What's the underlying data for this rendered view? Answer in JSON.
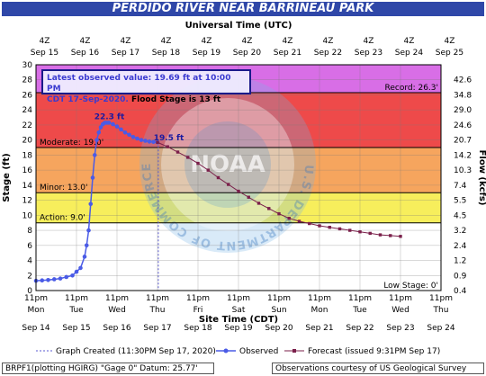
{
  "title": "PERDIDO RIVER NEAR BARRINEAU PARK",
  "top_axis_title": "Universal Time (UTC)",
  "bottom_axis_title": "Site Time (CDT)",
  "info_box": {
    "line1": "Latest observed value: 19.69 ft at 10:00 PM",
    "line2a": "CDT 17-Sep-2020.",
    "line2b": " Flood Stage is 13 ft"
  },
  "legend": {
    "graph_created": "Graph Created (11:30PM Sep 17, 2020)",
    "observed": "Observed",
    "forecast": "Forecast (issued 9:31PM Sep 17)"
  },
  "footer": {
    "left": "BRPF1(plotting HGIRG) \"Gage 0\" Datum: 25.77'",
    "right": "Observations courtesy of US Geological Survey"
  },
  "watermark": {
    "emblem": "NOAA",
    "text": "U.S. DEPARTMENT OF COMMERCE · NATIONAL OCEANIC AND ATMOSPHERIC ADMINISTRATION"
  },
  "colors": {
    "record_band": "#d86ee6",
    "major_band": "#ee4a4a",
    "moderate_band": "#f6a55e",
    "minor_band": "#f7ee5c",
    "observed": "#4a5be6",
    "forecast": "#7a1f4a",
    "title_bg": "#2f47a8"
  },
  "chart_data": {
    "type": "line",
    "title": "PERDIDO RIVER NEAR BARRINEAU PARK",
    "ylabel": "Stage (ft)",
    "y2label": "Flow (kcfs)",
    "xlabel": "Site Time (CDT)",
    "ylim": [
      0,
      30
    ],
    "yticks": [
      0,
      2,
      4,
      6,
      8,
      10,
      12,
      14,
      16,
      18,
      20,
      22,
      24,
      26,
      28,
      30
    ],
    "xlim_days": [
      "2020-09-14 23:00",
      "2020-09-24 23:00"
    ],
    "top_ticks": [
      {
        "t": "4Z",
        "d": "Sep 15"
      },
      {
        "t": "4Z",
        "d": "Sep 16"
      },
      {
        "t": "4Z",
        "d": "Sep 17"
      },
      {
        "t": "4Z",
        "d": "Sep 18"
      },
      {
        "t": "4Z",
        "d": "Sep 19"
      },
      {
        "t": "4Z",
        "d": "Sep 20"
      },
      {
        "t": "4Z",
        "d": "Sep 21"
      },
      {
        "t": "4Z",
        "d": "Sep 22"
      },
      {
        "t": "4Z",
        "d": "Sep 23"
      },
      {
        "t": "4Z",
        "d": "Sep 24"
      },
      {
        "t": "4Z",
        "d": "Sep 25"
      }
    ],
    "bottom_ticks": [
      {
        "t": "11pm",
        "w": "Mon",
        "d": "Sep 14"
      },
      {
        "t": "11pm",
        "w": "Tue",
        "d": "Sep 15"
      },
      {
        "t": "11pm",
        "w": "Wed",
        "d": "Sep 16"
      },
      {
        "t": "11pm",
        "w": "Thu",
        "d": "Sep 17"
      },
      {
        "t": "11pm",
        "w": "Fri",
        "d": "Sep 18"
      },
      {
        "t": "11pm",
        "w": "Sat",
        "d": "Sep 19"
      },
      {
        "t": "11pm",
        "w": "Sun",
        "d": "Sep 20"
      },
      {
        "t": "11pm",
        "w": "Mon",
        "d": "Sep 21"
      },
      {
        "t": "11pm",
        "w": "Tue",
        "d": "Sep 22"
      },
      {
        "t": "11pm",
        "w": "Wed",
        "d": "Sep 23"
      },
      {
        "t": "11pm",
        "w": "Thu",
        "d": "Sep 24"
      }
    ],
    "flow_ticks": [
      {
        "stage": 28,
        "label": "42.6"
      },
      {
        "stage": 26,
        "label": "34.8"
      },
      {
        "stage": 24,
        "label": "29.0"
      },
      {
        "stage": 22,
        "label": "24.6"
      },
      {
        "stage": 20,
        "label": "20.7"
      },
      {
        "stage": 18,
        "label": "14.2"
      },
      {
        "stage": 16,
        "label": "10.3"
      },
      {
        "stage": 14,
        "label": "7.4"
      },
      {
        "stage": 12,
        "label": "5.5"
      },
      {
        "stage": 10,
        "label": "4.5"
      },
      {
        "stage": 8,
        "label": "3.2"
      },
      {
        "stage": 6,
        "label": "2.4"
      },
      {
        "stage": 4,
        "label": "1.2"
      },
      {
        "stage": 2,
        "label": "0.9"
      },
      {
        "stage": 0,
        "label": "0.4"
      }
    ],
    "thresholds": [
      {
        "name": "Record",
        "value": 26.3,
        "label": "Record: 26.3'"
      },
      {
        "name": "Moderate",
        "value": 19.0,
        "label": "Moderate: 19.0'"
      },
      {
        "name": "Minor",
        "value": 13.0,
        "label": "Minor: 13.0'"
      },
      {
        "name": "Action",
        "value": 9.0,
        "label": "Action: 9.0'"
      },
      {
        "name": "Low Stage",
        "value": 0,
        "label": "Low Stage: 0'"
      }
    ],
    "bands": [
      {
        "from": 26.3,
        "to": 30,
        "color": "#d86ee6"
      },
      {
        "from": 19.0,
        "to": 26.3,
        "color": "#ee4a4a"
      },
      {
        "from": 13.0,
        "to": 19.0,
        "color": "#f6a55e"
      },
      {
        "from": 9.0,
        "to": 13.0,
        "color": "#f7ee5c"
      }
    ],
    "annotations": [
      {
        "label": "22.3 ft",
        "day": 1.9,
        "value": 22.3
      },
      {
        "label": "19.5 ft",
        "day": 3.1,
        "value": 19.5
      }
    ],
    "now_day": 3.02,
    "series": [
      {
        "name": "Observed",
        "x_days": [
          0.0,
          0.15,
          0.3,
          0.45,
          0.6,
          0.75,
          0.9,
          1.0,
          1.1,
          1.2,
          1.25,
          1.3,
          1.35,
          1.4,
          1.45,
          1.5,
          1.55,
          1.6,
          1.65,
          1.7,
          1.75,
          1.8,
          1.9,
          2.0,
          2.1,
          2.2,
          2.3,
          2.4,
          2.5,
          2.6,
          2.7,
          2.8,
          2.9,
          3.0
        ],
        "values": [
          1.3,
          1.35,
          1.4,
          1.5,
          1.6,
          1.8,
          2.0,
          2.5,
          3.0,
          4.5,
          6.0,
          8.0,
          11.5,
          15.0,
          18.0,
          20.0,
          21.0,
          21.7,
          22.1,
          22.3,
          22.3,
          22.3,
          22.1,
          21.8,
          21.4,
          21.0,
          20.7,
          20.4,
          20.2,
          20.0,
          19.9,
          19.8,
          19.75,
          19.69
        ]
      },
      {
        "name": "Forecast",
        "x_days": [
          3.0,
          3.25,
          3.5,
          3.75,
          4.0,
          4.25,
          4.5,
          4.75,
          5.0,
          5.25,
          5.5,
          5.75,
          6.0,
          6.25,
          6.5,
          6.75,
          7.0,
          7.25,
          7.5,
          7.75,
          8.0,
          8.25,
          8.5,
          8.75,
          9.0
        ],
        "values": [
          19.69,
          19.1,
          18.4,
          17.7,
          16.9,
          16.0,
          15.0,
          14.1,
          13.2,
          12.4,
          11.6,
          10.9,
          10.2,
          9.6,
          9.2,
          8.9,
          8.6,
          8.4,
          8.2,
          8.0,
          7.8,
          7.6,
          7.4,
          7.3,
          7.2
        ]
      }
    ]
  }
}
